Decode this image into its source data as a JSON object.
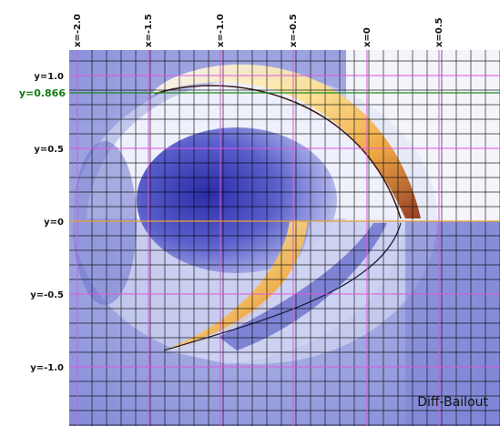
{
  "x_labels": [
    "x=-2.0",
    "x=-1.5",
    "x=-1.0",
    "x=-0.5",
    "x=0",
    "x=0.5"
  ],
  "y_labels": [
    "y=1.0",
    "y=0.5",
    "y=0",
    "y=-0.5",
    "y=-1.0"
  ],
  "highlight_label": "y=0.866",
  "caption": "Diff-Bailout",
  "colors": {
    "background_blue": "#7f86d6",
    "deep_blue": "#2a2ca6",
    "grid": "#000000",
    "magenta_guides": "#dd55dd",
    "orange_guides": "#e8a030",
    "highlight_line": "#1c8c1c",
    "hot": "#f0b040"
  }
}
